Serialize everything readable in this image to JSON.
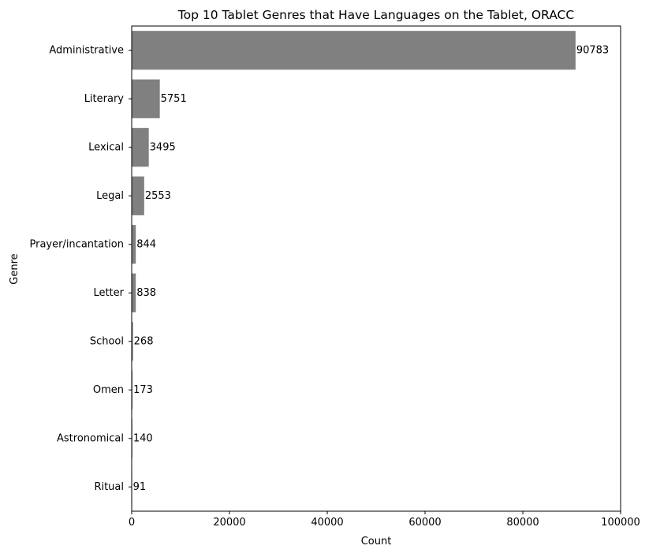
{
  "chart_data": {
    "type": "bar",
    "orientation": "horizontal",
    "title": "Top 10 Tablet Genres that Have Languages on the Tablet, ORACC",
    "xlabel": "Count",
    "ylabel": "Genre",
    "categories": [
      "Administrative",
      "Literary",
      "Lexical",
      "Legal",
      "Prayer/incantation",
      "Letter",
      "School",
      "Omen",
      "Astronomical",
      "Ritual"
    ],
    "values": [
      90783,
      5751,
      3495,
      2553,
      844,
      838,
      268,
      173,
      140,
      91
    ],
    "data_labels": [
      "90783",
      "5751",
      "3495",
      "2553",
      "844",
      "838",
      "268",
      "173",
      "140",
      "91"
    ],
    "xlim": [
      0,
      100000
    ],
    "xticks": [
      0,
      20000,
      40000,
      60000,
      80000,
      100000
    ],
    "xtick_labels": [
      "0",
      "20000",
      "40000",
      "60000",
      "80000",
      "100000"
    ],
    "grid": false,
    "bar_color": "#808080"
  }
}
